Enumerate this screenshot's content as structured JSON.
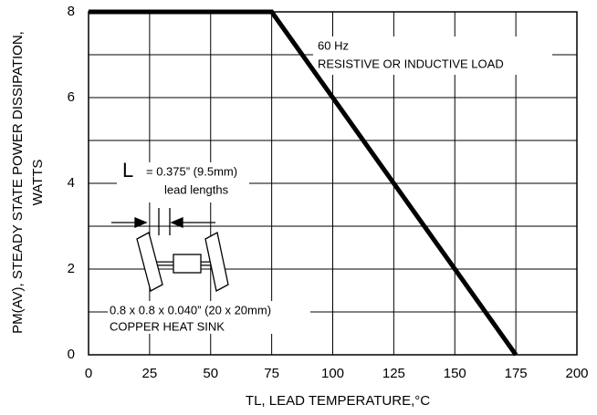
{
  "chart_data": {
    "type": "line",
    "x_label": "TL, LEAD TEMPERATURE,°C",
    "y_label": [
      "PM(AV), STEADY STATE POWER DISSIPATION,",
      "WATTS"
    ],
    "series": [
      {
        "x": [
          0,
          75,
          175
        ],
        "values": [
          8,
          8,
          0
        ],
        "color": "#000000"
      }
    ],
    "xlim": [
      0,
      200
    ],
    "xticks": [
      0,
      25,
      50,
      75,
      100,
      125,
      150,
      175,
      200
    ],
    "ylim": [
      0,
      8
    ],
    "yticks": [
      0,
      2,
      4,
      6,
      8
    ],
    "minor_yticks": [
      1,
      3,
      5,
      7
    ],
    "grid": true,
    "annotations": {
      "freq": "60 Hz",
      "load": "RESISTIVE OR INDUCTIVE LOAD",
      "l": "L",
      "length": "= 0.375” (9.5mm)",
      "lead": "lead lengths",
      "sink_size": "0.8 x 0.8 x 0.040” (20 x 20mm)",
      "sink": "COPPER HEAT SINK"
    }
  }
}
